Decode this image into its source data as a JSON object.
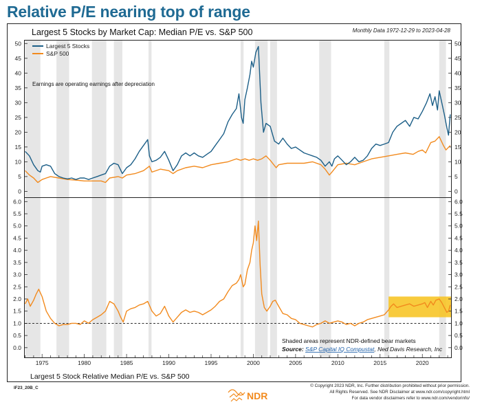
{
  "headline": "Relative P/E nearing top of range",
  "chart_data": [
    {
      "type": "line",
      "title": "Largest 5 Stocks by Market Cap: Median P/E vs. S&P 500",
      "subtitle": "Monthly Data 1972-12-29 to 2023-04-28",
      "note": "Earnings are operating earnings after depreciation",
      "xlim": [
        1972.95,
        2023.4
      ],
      "ylim": [
        -2,
        51
      ],
      "yticks": [
        0,
        5,
        10,
        15,
        20,
        25,
        30,
        35,
        40,
        45,
        50
      ],
      "ytick_labels": [
        "0",
        "5",
        "10",
        "15",
        "20",
        "25",
        "30",
        "35",
        "40",
        "45",
        "50"
      ],
      "grid": false,
      "legend_position": "top-left",
      "series": [
        {
          "name": "Largest 5 Stocks",
          "color": "#1b5e87",
          "x": [
            1973.0,
            1973.5,
            1974.0,
            1974.5,
            1974.8,
            1975.0,
            1975.5,
            1976.0,
            1976.5,
            1977.0,
            1977.5,
            1978.0,
            1978.5,
            1979.0,
            1979.5,
            1980.0,
            1980.5,
            1981.0,
            1981.5,
            1982.0,
            1982.5,
            1983.0,
            1983.5,
            1984.0,
            1984.5,
            1985.0,
            1985.5,
            1986.0,
            1986.5,
            1987.0,
            1987.5,
            1987.7,
            1988.0,
            1988.5,
            1989.0,
            1989.5,
            1990.0,
            1990.5,
            1991.0,
            1991.5,
            1992.0,
            1992.5,
            1993.0,
            1993.5,
            1994.0,
            1994.5,
            1995.0,
            1995.5,
            1996.0,
            1996.5,
            1997.0,
            1997.5,
            1998.0,
            1998.3,
            1998.6,
            1998.8,
            1999.0,
            1999.3,
            1999.6,
            1999.8,
            2000.0,
            2000.3,
            2000.6,
            2000.9,
            2001.2,
            2001.5,
            2002.0,
            2002.5,
            2003.0,
            2003.5,
            2004.0,
            2004.5,
            2005.0,
            2005.5,
            2006.0,
            2006.5,
            2007.0,
            2007.5,
            2008.0,
            2008.5,
            2009.0,
            2009.3,
            2009.6,
            2010.0,
            2010.5,
            2011.0,
            2011.5,
            2012.0,
            2012.5,
            2013.0,
            2013.5,
            2014.0,
            2014.5,
            2015.0,
            2015.5,
            2016.0,
            2016.5,
            2017.0,
            2017.5,
            2018.0,
            2018.5,
            2019.0,
            2019.5,
            2020.0,
            2020.5,
            2020.9,
            2021.2,
            2021.5,
            2021.8,
            2022.0,
            2022.3,
            2022.6,
            2022.9,
            2023.1,
            2023.3
          ],
          "y": [
            13.5,
            12,
            9,
            7,
            6.5,
            8.5,
            9,
            8.5,
            6,
            5,
            4.5,
            4.2,
            4.5,
            4.0,
            4.5,
            4.5,
            4.0,
            4.5,
            5.0,
            5.5,
            6.0,
            8.5,
            9.5,
            9,
            6,
            8,
            9,
            11,
            13.5,
            15.5,
            17.5,
            12,
            10,
            10.5,
            11.5,
            13.5,
            10.5,
            7,
            9,
            12,
            13,
            12,
            13,
            12,
            11.5,
            12.5,
            13.5,
            15.5,
            17.5,
            19.5,
            23.5,
            26,
            28,
            33,
            25,
            23,
            31,
            35,
            39.5,
            44,
            42,
            47,
            49,
            30,
            20,
            23,
            22,
            17,
            16,
            18,
            16,
            14.5,
            15,
            14,
            13,
            12.5,
            12,
            11.5,
            10.5,
            8.5,
            10,
            8.5,
            11,
            12,
            10.5,
            9,
            10,
            11.5,
            10,
            10.5,
            12,
            14.5,
            16,
            15.5,
            16,
            16.5,
            20,
            22,
            23,
            24,
            22,
            25,
            24.5,
            27,
            30,
            33,
            29,
            32,
            27.5,
            34,
            30,
            26,
            21.5,
            19,
            26
          ]
        },
        {
          "name": "S&P 500",
          "color": "#f28a1d",
          "x": [
            1973.0,
            1973.5,
            1974.0,
            1974.5,
            1975.0,
            1975.5,
            1976.0,
            1977.0,
            1978.0,
            1979.0,
            1980.0,
            1981.0,
            1982.0,
            1982.5,
            1983.0,
            1984.0,
            1984.5,
            1985.0,
            1986.0,
            1987.0,
            1987.7,
            1988.0,
            1989.0,
            1990.0,
            1990.5,
            1991.0,
            1992.0,
            1993.0,
            1994.0,
            1995.0,
            1996.0,
            1997.0,
            1998.0,
            1998.5,
            1999.0,
            1999.5,
            2000.0,
            2000.5,
            2001.0,
            2001.5,
            2002.0,
            2002.7,
            2003.0,
            2004.0,
            2005.0,
            2006.0,
            2007.0,
            2008.0,
            2008.5,
            2009.0,
            2009.3,
            2010.0,
            2011.0,
            2012.0,
            2013.0,
            2014.0,
            2015.0,
            2016.0,
            2017.0,
            2018.0,
            2018.9,
            2019.5,
            2020.0,
            2020.4,
            2021.0,
            2021.5,
            2022.0,
            2022.5,
            2022.8,
            2023.3
          ],
          "y": [
            7.0,
            5.5,
            4.5,
            3.0,
            4.0,
            4.5,
            5.0,
            4.5,
            4.0,
            3.8,
            3.5,
            3.5,
            3.5,
            3.0,
            4.5,
            5.0,
            4.5,
            5.5,
            6.0,
            7.0,
            8.5,
            6.5,
            7.5,
            7.0,
            6.0,
            7.0,
            8.0,
            8.5,
            8.0,
            9.0,
            9.5,
            10.0,
            11.0,
            10.5,
            11.0,
            10.5,
            11.0,
            10.5,
            11.0,
            12.0,
            10.5,
            8.0,
            9.0,
            9.5,
            9.5,
            9.5,
            10.0,
            9.0,
            7.5,
            5.5,
            6.5,
            9.0,
            9.5,
            9.0,
            10.0,
            11.0,
            11.5,
            12.0,
            12.5,
            13.0,
            12.5,
            13.5,
            14.0,
            13.0,
            16.5,
            17.0,
            18.5,
            15.5,
            14.0,
            15.5
          ]
        }
      ]
    },
    {
      "type": "line",
      "title": "Largest 5 Stock Relative Median P/E vs. S&P 500",
      "xlim": [
        1972.95,
        2023.4
      ],
      "ylim": [
        -0.4,
        6.15
      ],
      "yticks": [
        0,
        0.5,
        1,
        1.5,
        2,
        2.5,
        3,
        3.5,
        4,
        4.5,
        5,
        5.5,
        6
      ],
      "ytick_labels": [
        "0.0",
        "0.5",
        "1.0",
        "1.5",
        "2.0",
        "2.5",
        "3.0",
        "3.5",
        "4.0",
        "4.5",
        "5.0",
        "5.5",
        "6.0"
      ],
      "xticks": [
        1975,
        1980,
        1985,
        1990,
        1995,
        2000,
        2005,
        2010,
        2015,
        2020
      ],
      "xtick_labels": [
        "1975",
        "1980",
        "1985",
        "1990",
        "1995",
        "2000",
        "2005",
        "2010",
        "2015",
        "2020"
      ],
      "reference_line": 1.0,
      "highlight_range": {
        "x": [
          2016.0,
          2023.4
        ],
        "y": [
          1.25,
          2.1
        ],
        "color": "#f7c21b"
      },
      "grid": false,
      "series": [
        {
          "name": "",
          "color": "#f28a1d",
          "x": [
            1973.0,
            1973.3,
            1973.6,
            1974.0,
            1974.3,
            1974.6,
            1975.0,
            1975.5,
            1976.0,
            1976.5,
            1977.0,
            1977.5,
            1978.0,
            1978.5,
            1979.0,
            1979.5,
            1980.0,
            1980.5,
            1981.0,
            1981.5,
            1982.0,
            1982.5,
            1983.0,
            1983.5,
            1984.0,
            1984.3,
            1984.6,
            1985.0,
            1985.5,
            1986.0,
            1986.5,
            1987.0,
            1987.5,
            1988.0,
            1988.5,
            1989.0,
            1989.5,
            1990.0,
            1990.5,
            1991.0,
            1991.5,
            1992.0,
            1992.5,
            1993.0,
            1993.5,
            1994.0,
            1994.5,
            1995.0,
            1995.5,
            1996.0,
            1996.5,
            1997.0,
            1997.5,
            1998.0,
            1998.3,
            1998.5,
            1998.8,
            1999.0,
            1999.3,
            1999.6,
            1999.8,
            2000.0,
            2000.2,
            2000.4,
            2000.6,
            2000.8,
            2001.0,
            2001.3,
            2001.6,
            2002.0,
            2002.3,
            2002.6,
            2003.0,
            2003.5,
            2004.0,
            2004.5,
            2005.0,
            2005.5,
            2006.0,
            2006.5,
            2007.0,
            2007.5,
            2008.0,
            2008.5,
            2009.0,
            2009.5,
            2010.0,
            2010.5,
            2011.0,
            2011.5,
            2012.0,
            2012.5,
            2013.0,
            2013.5,
            2014.0,
            2014.5,
            2015.0,
            2015.5,
            2016.0,
            2016.3,
            2016.6,
            2017.0,
            2017.5,
            2018.0,
            2018.5,
            2019.0,
            2019.5,
            2020.0,
            2020.3,
            2020.6,
            2021.0,
            2021.3,
            2021.6,
            2022.0,
            2022.3,
            2022.6,
            2022.9,
            2023.1,
            2023.3
          ],
          "y": [
            1.8,
            2.0,
            1.7,
            1.95,
            2.2,
            2.4,
            2.1,
            1.5,
            1.2,
            1.0,
            0.9,
            0.95,
            0.95,
            1.0,
            1.0,
            0.95,
            1.1,
            1.0,
            1.15,
            1.25,
            1.35,
            1.5,
            1.9,
            1.8,
            1.5,
            1.25,
            1.05,
            1.5,
            1.6,
            1.65,
            1.75,
            1.8,
            1.9,
            1.5,
            1.3,
            1.4,
            1.7,
            1.3,
            1.05,
            1.25,
            1.45,
            1.55,
            1.45,
            1.5,
            1.45,
            1.35,
            1.45,
            1.55,
            1.7,
            1.9,
            2.0,
            2.3,
            2.55,
            2.65,
            2.8,
            3.0,
            2.5,
            2.6,
            3.2,
            3.5,
            4.0,
            4.3,
            5.0,
            4.4,
            5.2,
            3.4,
            2.2,
            1.65,
            1.5,
            1.7,
            1.9,
            1.95,
            1.7,
            1.4,
            1.35,
            1.2,
            1.15,
            1.0,
            0.95,
            0.9,
            0.85,
            0.95,
            1.0,
            1.1,
            1.0,
            1.05,
            1.1,
            1.05,
            0.95,
            1.0,
            0.9,
            1.0,
            1.05,
            1.15,
            1.2,
            1.25,
            1.3,
            1.35,
            1.55,
            1.7,
            1.8,
            1.65,
            1.7,
            1.75,
            1.8,
            1.7,
            1.75,
            1.8,
            1.85,
            1.65,
            1.9,
            1.75,
            1.95,
            2.0,
            1.85,
            1.65,
            1.45,
            1.5,
            1.75
          ]
        }
      ]
    }
  ],
  "bear_markets": [
    [
      1973.0,
      1974.8
    ],
    [
      1976.7,
      1978.2
    ],
    [
      1980.9,
      1982.6
    ],
    [
      1983.5,
      1984.5
    ],
    [
      1987.6,
      1987.95
    ],
    [
      1998.5,
      1998.85
    ],
    [
      2000.2,
      2001.7
    ],
    [
      2002.0,
      2002.8
    ],
    [
      2007.8,
      2009.2
    ],
    [
      2015.5,
      2016.1
    ],
    [
      2022.0,
      2022.8
    ]
  ],
  "shading_note": "Shaded areas represent NDR-defined bear markets",
  "source_label": "Source:",
  "source_link": "S&P Capital IQ Compustat",
  "source_rest": ", Ned Davis Research, Inc",
  "chart_id": "IF23_20B_C",
  "brand": "NDR",
  "footer_lines": [
    "© Copyright 2023 NDR, Inc. Further distribution prohibited without prior permission.",
    "All Rights Reserved. See NDR Disclaimer at www.ndr.com/copyright.html",
    "For data vendor disclaimers refer to www.ndr.com/vendorinfo/"
  ],
  "colors": {
    "headline": "#1f6a93",
    "shade": "#e6e6e6",
    "highlight": "#f7c21b",
    "brand": "#f28a1d"
  }
}
